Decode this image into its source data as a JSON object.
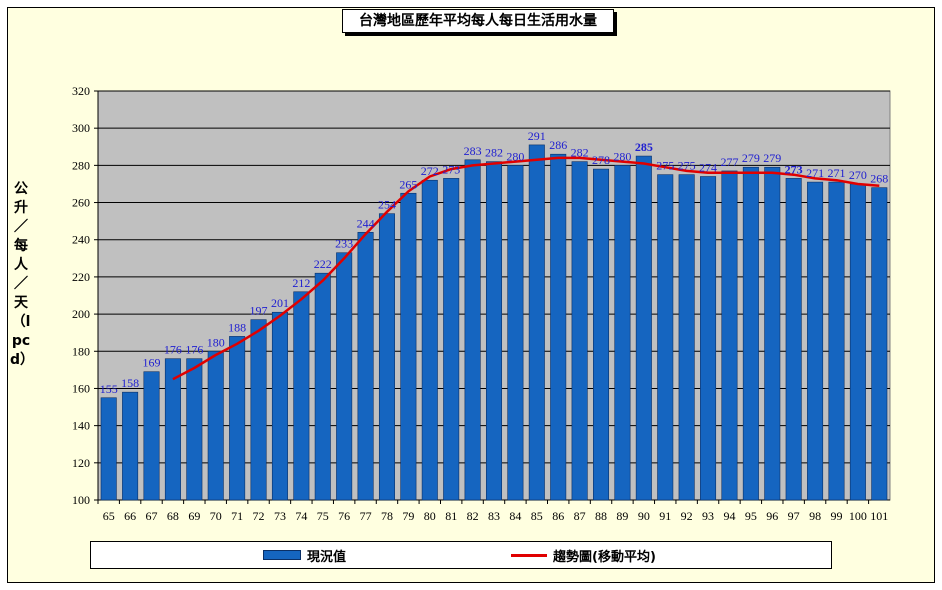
{
  "title": "台灣地區歷年平均每人每日生活用水量",
  "chart_data": {
    "type": "bar",
    "title": "台灣地區歷年平均每人每日生活用水量",
    "ylabel": "公升／每人／天（lpcd）",
    "xlabel": "",
    "ylim": [
      100,
      320
    ],
    "yticks": [
      100,
      120,
      140,
      160,
      180,
      200,
      220,
      240,
      260,
      280,
      300,
      320
    ],
    "grid": true,
    "legend": "bottom",
    "categories": [
      "65",
      "66",
      "67",
      "68",
      "69",
      "70",
      "71",
      "72",
      "73",
      "74",
      "75",
      "76",
      "77",
      "78",
      "79",
      "80",
      "81",
      "82",
      "83",
      "84",
      "85",
      "86",
      "87",
      "88",
      "89",
      "90",
      "91",
      "92",
      "93",
      "94",
      "95",
      "96",
      "97",
      "98",
      "99",
      "100",
      "101"
    ],
    "series": [
      {
        "name": "現況值",
        "type": "bar",
        "values": [
          155,
          158,
          169,
          176,
          176,
          180,
          188,
          197,
          201,
          212,
          222,
          233,
          244,
          254,
          265,
          272,
          273,
          283,
          282,
          280,
          291,
          286,
          282,
          278,
          280,
          285,
          275,
          275,
          274,
          277,
          279,
          279,
          273,
          271,
          271,
          270,
          268
        ]
      },
      {
        "name": "趨勢圖(移動平均)",
        "type": "line",
        "values": [
          null,
          null,
          null,
          165,
          171,
          178,
          184,
          191,
          199,
          208,
          218,
          230,
          243,
          255,
          266,
          274,
          278,
          280,
          281,
          282,
          283,
          284,
          284,
          283,
          282,
          281,
          279,
          277,
          276,
          276,
          276,
          276,
          275,
          273,
          272,
          270,
          269
        ]
      }
    ],
    "colors": {
      "bar": "#1565c0",
      "line": "#e00000",
      "plot_bg": "#c0c0c0",
      "frame_bg": "#ffffe0",
      "label": "#2020d0"
    }
  }
}
